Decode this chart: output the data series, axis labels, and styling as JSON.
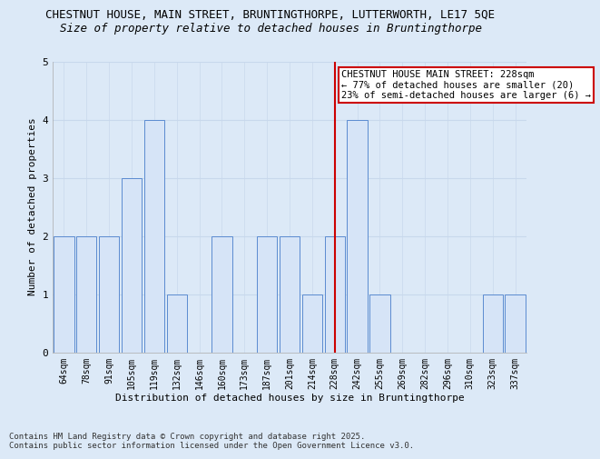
{
  "title1": "CHESTNUT HOUSE, MAIN STREET, BRUNTINGTHORPE, LUTTERWORTH, LE17 5QE",
  "title2": "Size of property relative to detached houses in Bruntingthorpe",
  "xlabel": "Distribution of detached houses by size in Bruntingthorpe",
  "ylabel": "Number of detached properties",
  "categories": [
    "64sqm",
    "78sqm",
    "91sqm",
    "105sqm",
    "119sqm",
    "132sqm",
    "146sqm",
    "160sqm",
    "173sqm",
    "187sqm",
    "201sqm",
    "214sqm",
    "228sqm",
    "242sqm",
    "255sqm",
    "269sqm",
    "282sqm",
    "296sqm",
    "310sqm",
    "323sqm",
    "337sqm"
  ],
  "values": [
    2,
    2,
    2,
    3,
    4,
    1,
    0,
    2,
    0,
    2,
    2,
    1,
    2,
    4,
    1,
    0,
    0,
    0,
    0,
    1,
    1
  ],
  "bar_color": "#d6e4f7",
  "bar_edge_color": "#5b8bd0",
  "highlight_index": 12,
  "highlight_line_color": "#cc0000",
  "annotation_text": "CHESTNUT HOUSE MAIN STREET: 228sqm\n← 77% of detached houses are smaller (20)\n23% of semi-detached houses are larger (6) →",
  "annotation_box_color": "#ffffff",
  "annotation_box_edge": "#cc0000",
  "ylim": [
    0,
    5
  ],
  "yticks": [
    0,
    1,
    2,
    3,
    4,
    5
  ],
  "grid_color": "#c8d8ec",
  "background_color": "#dce9f7",
  "footer1": "Contains HM Land Registry data © Crown copyright and database right 2025.",
  "footer2": "Contains public sector information licensed under the Open Government Licence v3.0.",
  "title1_fontsize": 9,
  "title2_fontsize": 9,
  "axis_label_fontsize": 8,
  "tick_fontsize": 7,
  "annotation_fontsize": 7.5,
  "footer_fontsize": 6.5
}
